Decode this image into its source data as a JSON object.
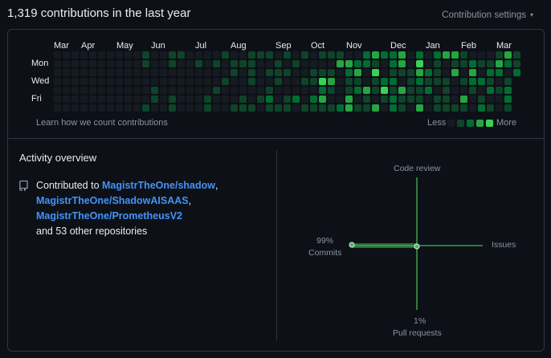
{
  "header": {
    "title": "1,319 contributions in the last year",
    "settings_label": "Contribution settings",
    "settings_caret": "▾"
  },
  "calendar": {
    "months": [
      "Mar",
      "Apr",
      "May",
      "Jun",
      "Jul",
      "Aug",
      "Sep",
      "Oct",
      "Nov",
      "Dec",
      "Jan",
      "Feb",
      "Mar"
    ],
    "days": [
      "Mon",
      "Wed",
      "Fri"
    ],
    "learn_link": "Learn how we count contributions",
    "legend_less": "Less",
    "legend_more": "More",
    "levels": [
      "#161b22",
      "#0e4429",
      "#006d32",
      "#26a641",
      "#39d353"
    ]
  },
  "activity": {
    "title": "Activity overview",
    "contributed_prefix": "Contributed to ",
    "repos": [
      "MagistrTheOne/shadow",
      "MagistrTheOne/ShadowAISAAS",
      "MagistrTheOne/PrometheusV2"
    ],
    "comma": ",",
    "other": "and 53 other repositories",
    "repo_icon": "repo-icon"
  },
  "overview_chart": {
    "code_review_label": "Code review",
    "issues_label": "Issues",
    "commits_pct": "99%",
    "commits_label": "Commits",
    "pull_requests_pct": "1%",
    "pull_requests_label": "Pull requests",
    "commits_value": 99,
    "pull_requests_value": 1,
    "issues_value": 0,
    "code_review_value": 0,
    "accent": "#3fb950"
  }
}
